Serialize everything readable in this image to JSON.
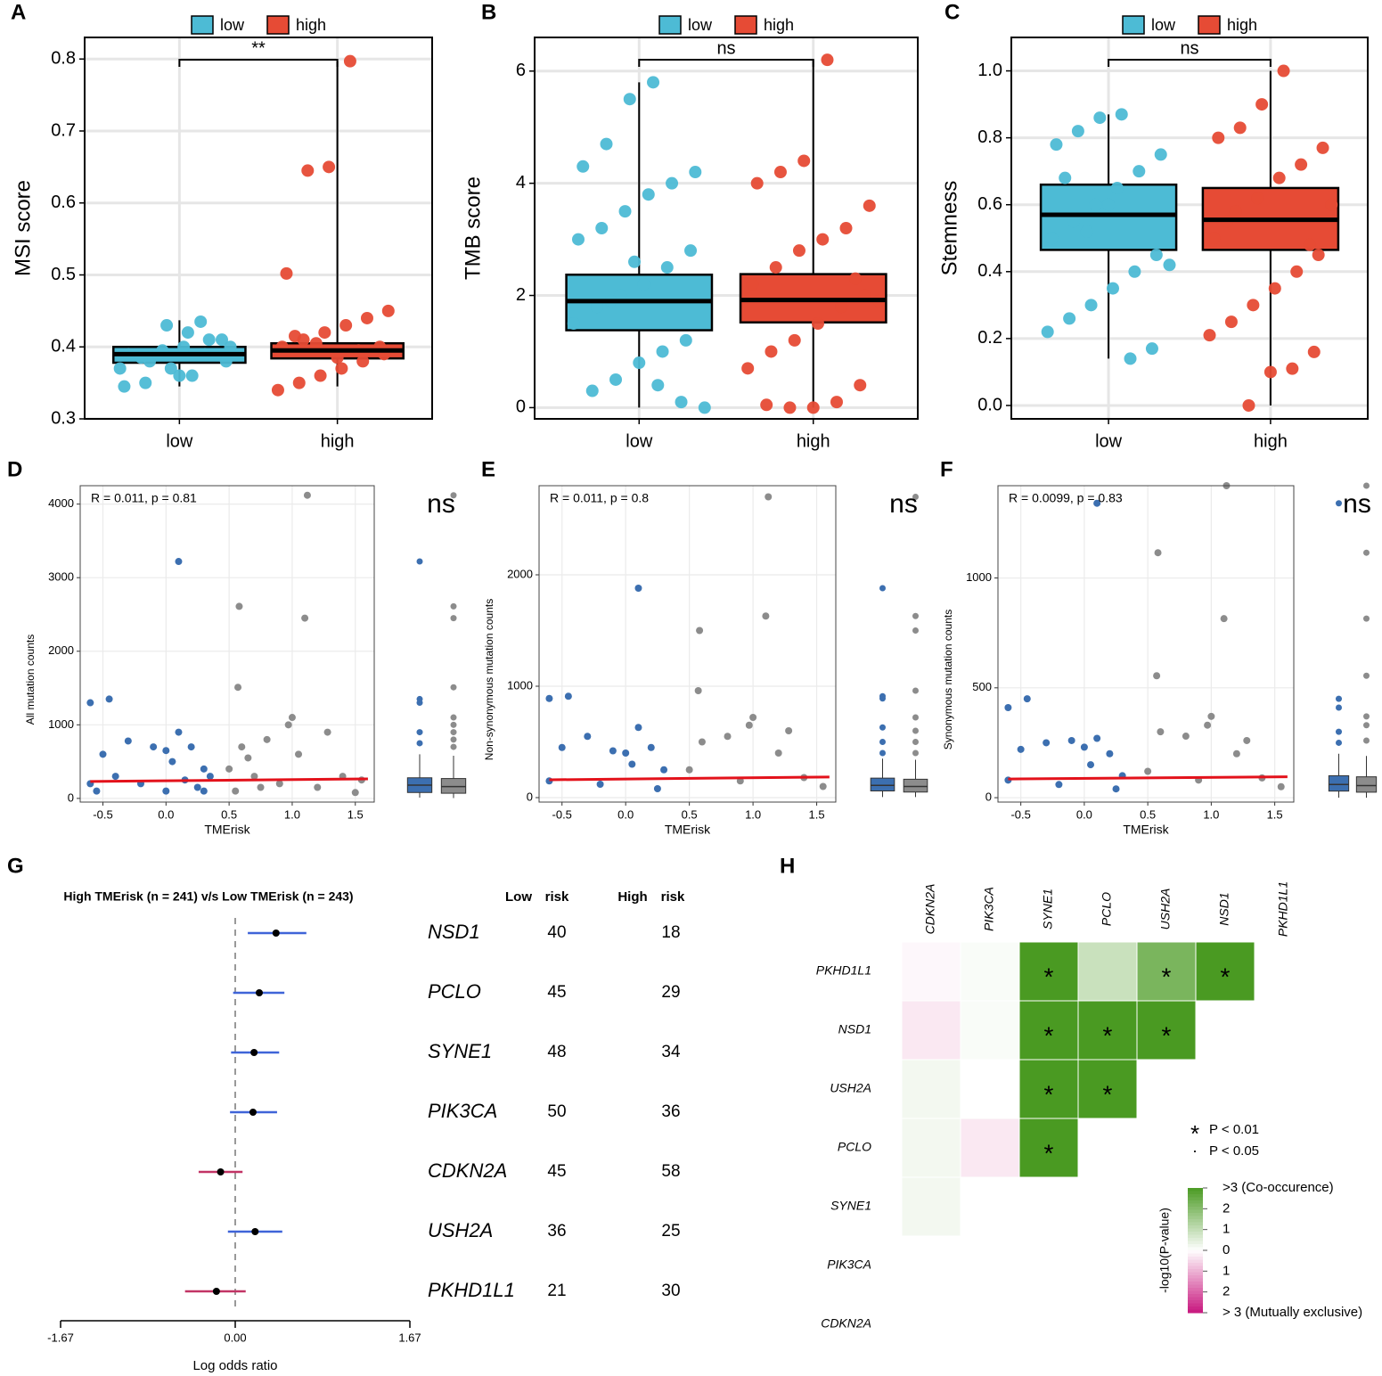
{
  "chart_data": [
    {
      "type": "box",
      "panel": "A",
      "ylabel": "MSI score",
      "categories": [
        "low",
        "high"
      ],
      "series": [
        {
          "name": "low",
          "color": "#4dbbd5"
        },
        {
          "name": "high",
          "color": "#e64b35"
        }
      ],
      "boxes": [
        {
          "q1": 0.378,
          "median": 0.39,
          "q3": 0.4,
          "whislo": 0.345,
          "whishi": 0.437,
          "points": [
            0.36,
            0.37,
            0.38,
            0.39,
            0.4,
            0.41,
            0.42,
            0.43,
            0.35,
            0.345,
            0.38,
            0.39,
            0.4,
            0.395,
            0.385,
            0.37,
            0.41,
            0.435,
            0.36,
            0.39
          ]
        },
        {
          "q1": 0.384,
          "median": 0.395,
          "q3": 0.405,
          "whislo": 0.345,
          "whishi": 0.797,
          "points": [
            0.797,
            0.65,
            0.645,
            0.502,
            0.45,
            0.44,
            0.43,
            0.42,
            0.41,
            0.4,
            0.39,
            0.38,
            0.37,
            0.36,
            0.35,
            0.34,
            0.4,
            0.395,
            0.385,
            0.405,
            0.415
          ]
        }
      ],
      "signif": "**",
      "ylim": [
        0.3,
        0.83
      ],
      "yticks": [
        0.3,
        0.4,
        0.5,
        0.6,
        0.7,
        0.8
      ],
      "grid": true
    },
    {
      "type": "box",
      "panel": "B",
      "ylabel": "TMB score",
      "categories": [
        "low",
        "high"
      ],
      "series": [
        {
          "name": "low",
          "color": "#4dbbd5"
        },
        {
          "name": "high",
          "color": "#e64b35"
        }
      ],
      "boxes": [
        {
          "q1": 1.38,
          "median": 1.9,
          "q3": 2.37,
          "whislo": 0.0,
          "whishi": 5.8,
          "points": [
            5.8,
            5.5,
            4.7,
            4.3,
            4.2,
            4.0,
            3.8,
            3.5,
            3.2,
            3.0,
            2.8,
            2.5,
            2.2,
            2.0,
            1.8,
            1.5,
            1.2,
            1.0,
            0.8,
            0.5,
            0.3,
            0.0,
            0.1,
            0.4,
            2.6,
            1.9
          ]
        },
        {
          "q1": 1.52,
          "median": 1.92,
          "q3": 2.38,
          "whislo": 0.0,
          "whishi": 6.2,
          "points": [
            6.2,
            4.4,
            4.2,
            4.0,
            3.6,
            3.2,
            3.0,
            2.8,
            2.5,
            2.2,
            2.0,
            1.8,
            1.5,
            1.2,
            1.0,
            0.7,
            0.4,
            0.1,
            0.0,
            0.0,
            0.05,
            1.9,
            2.3
          ]
        }
      ],
      "signif": "ns",
      "ylim": [
        -0.2,
        6.6
      ],
      "yticks": [
        0,
        2,
        4,
        6
      ],
      "grid": true
    },
    {
      "type": "box",
      "panel": "C",
      "ylabel": "Stemness",
      "categories": [
        "low",
        "high"
      ],
      "series": [
        {
          "name": "low",
          "color": "#4dbbd5"
        },
        {
          "name": "high",
          "color": "#e64b35"
        }
      ],
      "boxes": [
        {
          "q1": 0.465,
          "median": 0.57,
          "q3": 0.66,
          "whislo": 0.14,
          "whishi": 0.87,
          "points": [
            0.87,
            0.86,
            0.82,
            0.78,
            0.75,
            0.7,
            0.65,
            0.6,
            0.55,
            0.5,
            0.45,
            0.4,
            0.35,
            0.3,
            0.26,
            0.22,
            0.17,
            0.14,
            0.6,
            0.52,
            0.68,
            0.42
          ]
        },
        {
          "q1": 0.465,
          "median": 0.555,
          "q3": 0.65,
          "whislo": 0.0,
          "whishi": 1.0,
          "points": [
            1.0,
            0.9,
            0.83,
            0.8,
            0.77,
            0.72,
            0.68,
            0.62,
            0.58,
            0.5,
            0.45,
            0.4,
            0.35,
            0.3,
            0.25,
            0.21,
            0.16,
            0.11,
            0.1,
            0.0,
            0.55,
            0.6,
            0.48
          ]
        }
      ],
      "signif": "ns",
      "ylim": [
        -0.04,
        1.1
      ],
      "yticks": [
        {
          "value": 0,
          "label": "0.0"
        },
        0.2,
        0.4,
        0.6,
        0.8,
        {
          "value": 1,
          "label": "1.0"
        }
      ],
      "grid": true
    },
    {
      "type": "scatter",
      "panel": "D",
      "annotation": "R = 0.011, p = 0.81",
      "signif": "ns",
      "xlabel": "TMErisk",
      "ylabel": "All mutation counts",
      "groups": [
        {
          "color": "#3c6fb0",
          "x": [
            -0.6,
            -0.45,
            0.1,
            -0.6,
            -0.5,
            -0.3,
            -0.1,
            0,
            0.1,
            0.2,
            0.3,
            -0.2,
            0,
            0.15,
            0.25,
            -0.4,
            0.05,
            -0.55,
            0.3,
            0.35
          ],
          "y": [
            1300,
            1350,
            3220,
            200,
            600,
            780,
            700,
            650,
            900,
            700,
            400,
            200,
            100,
            250,
            150,
            300,
            500,
            100,
            100,
            300
          ]
        },
        {
          "color": "#8c8c8c",
          "x": [
            1.12,
            0.58,
            1.1,
            0.57,
            1.0,
            0.97,
            1.28,
            0.6,
            0.8,
            0.5,
            0.7,
            0.9,
            1.05,
            1.2,
            1.4,
            1.55,
            0.55,
            0.75,
            1.5,
            0.65
          ],
          "y": [
            4120,
            2610,
            2450,
            1510,
            1100,
            1000,
            900,
            700,
            800,
            400,
            300,
            200,
            600,
            150,
            300,
            250,
            100,
            150,
            80,
            550
          ]
        }
      ],
      "fit": {
        "color": "#e3121b",
        "x": [
          -0.6,
          1.6
        ],
        "y": [
          230,
          265
        ]
      },
      "boxes": [
        {
          "q1": 80,
          "median": 180,
          "q3": 280,
          "whislo": 10,
          "whishi": 600,
          "outliers": [
            750,
            900,
            1300,
            1350,
            3220
          ]
        },
        {
          "q1": 70,
          "median": 160,
          "q3": 270,
          "whislo": 5,
          "whishi": 580,
          "outliers": [
            700,
            800,
            900,
            1000,
            1100,
            1510,
            2450,
            2610,
            4120
          ]
        }
      ],
      "xlim": [
        -0.68,
        1.65
      ],
      "xticks": [
        -0.5,
        {
          "value": 0,
          "label": "0.0"
        },
        0.5,
        {
          "value": 1,
          "label": "1.0"
        },
        1.5
      ],
      "ylim": [
        -50,
        4250
      ],
      "yticks": [
        0,
        1000,
        2000,
        3000,
        4000
      ],
      "grid": true
    },
    {
      "type": "scatter",
      "panel": "E",
      "annotation": "R = 0.011, p = 0.8",
      "signif": "ns",
      "xlabel": "TMErisk",
      "ylabel": "Non-synonymous mutation counts",
      "groups": [
        {
          "color": "#3c6fb0",
          "x": [
            -0.6,
            -0.45,
            0.1,
            -0.6,
            -0.5,
            -0.3,
            -0.1,
            0,
            0.1,
            0.2,
            0.3,
            -0.2,
            0.05,
            0.25
          ],
          "y": [
            890,
            910,
            1880,
            150,
            450,
            550,
            420,
            400,
            630,
            450,
            250,
            120,
            300,
            80
          ]
        },
        {
          "color": "#8c8c8c",
          "x": [
            1.12,
            0.58,
            1.1,
            0.57,
            1.0,
            0.97,
            1.28,
            0.6,
            0.8,
            0.5,
            0.9,
            1.2,
            1.4,
            1.55
          ],
          "y": [
            2700,
            1500,
            1630,
            960,
            720,
            650,
            600,
            500,
            550,
            250,
            150,
            400,
            180,
            100
          ]
        }
      ],
      "fit": {
        "color": "#e3121b",
        "x": [
          -0.6,
          1.6
        ],
        "y": [
          160,
          185
        ]
      },
      "boxes": [
        {
          "q1": 60,
          "median": 110,
          "q3": 175,
          "whislo": 5,
          "whishi": 350,
          "outliers": [
            400,
            500,
            630,
            890,
            910,
            1880
          ]
        },
        {
          "q1": 50,
          "median": 100,
          "q3": 165,
          "whislo": 5,
          "whishi": 340,
          "outliers": [
            400,
            500,
            600,
            720,
            960,
            1500,
            1630,
            2700
          ]
        }
      ],
      "xlim": [
        -0.68,
        1.65
      ],
      "xticks": [
        -0.5,
        {
          "value": 0,
          "label": "0.0"
        },
        0.5,
        {
          "value": 1,
          "label": "1.0"
        },
        1.5
      ],
      "ylim": [
        -40,
        2800
      ],
      "yticks": [
        0,
        1000,
        2000
      ],
      "grid": true
    },
    {
      "type": "scatter",
      "panel": "F",
      "annotation": "R = 0.0099, p = 0.83",
      "signif": "ns",
      "xlabel": "TMErisk",
      "ylabel": "Synonymous mutation counts",
      "groups": [
        {
          "color": "#3c6fb0",
          "x": [
            -0.6,
            -0.45,
            0.1,
            -0.6,
            -0.5,
            -0.3,
            -0.1,
            0,
            0.1,
            0.2,
            0.3,
            -0.2,
            0.05,
            0.25
          ],
          "y": [
            410,
            450,
            1340,
            80,
            220,
            250,
            260,
            230,
            270,
            200,
            100,
            60,
            150,
            40
          ]
        },
        {
          "color": "#8c8c8c",
          "x": [
            1.12,
            0.58,
            1.1,
            0.57,
            1.0,
            0.97,
            1.28,
            0.6,
            0.8,
            0.5,
            0.9,
            1.2,
            1.4,
            1.55
          ],
          "y": [
            1420,
            1115,
            815,
            555,
            370,
            330,
            260,
            300,
            280,
            120,
            80,
            200,
            90,
            50
          ]
        }
      ],
      "fit": {
        "color": "#e3121b",
        "x": [
          -0.6,
          1.6
        ],
        "y": [
          85,
          95
        ]
      },
      "boxes": [
        {
          "q1": 30,
          "median": 60,
          "q3": 100,
          "whislo": 0,
          "whishi": 200,
          "outliers": [
            250,
            300,
            410,
            450,
            1340
          ]
        },
        {
          "q1": 25,
          "median": 55,
          "q3": 95,
          "whislo": 0,
          "whishi": 190,
          "outliers": [
            260,
            330,
            370,
            555,
            815,
            1115,
            1420
          ]
        }
      ],
      "xlim": [
        -0.68,
        1.65
      ],
      "xticks": [
        -0.5,
        {
          "value": 0,
          "label": "0.0"
        },
        0.5,
        {
          "value": 1,
          "label": "1.0"
        },
        1.5
      ],
      "ylim": [
        -20,
        1420
      ],
      "yticks": [
        0,
        500,
        1000
      ],
      "grid": true
    },
    {
      "type": "forest",
      "panel": "G",
      "title": "High TMErisk (n = 241) v/s Low TMErisk (n = 243)",
      "xlabel": "Log odds ratio",
      "col_headers": [
        "Low",
        "risk",
        "High",
        "risk"
      ],
      "genes": [
        "NSD1",
        "PCLO",
        "SYNE1",
        "PIK3CA",
        "CDKN2A",
        "USH2A",
        "PKHD1L1"
      ],
      "estimate": [
        0.39,
        0.23,
        0.18,
        0.17,
        -0.14,
        0.19,
        -0.18
      ],
      "ci_low": [
        0.12,
        -0.02,
        -0.04,
        -0.05,
        -0.35,
        -0.07,
        -0.48
      ],
      "ci_high": [
        0.68,
        0.47,
        0.42,
        0.4,
        0.07,
        0.45,
        0.1
      ],
      "low_counts": [
        40,
        45,
        48,
        50,
        45,
        36,
        21
      ],
      "high_counts": [
        18,
        29,
        34,
        36,
        58,
        25,
        30
      ],
      "color_pos": "#3f64d8",
      "color_neg": "#c23465",
      "xlim": [
        -1.67,
        1.67
      ],
      "xticks": [
        -1.67,
        {
          "value": 0,
          "label": "0.00"
        },
        1.67
      ]
    },
    {
      "type": "heatmap",
      "panel": "H",
      "rows": [
        "PKHD1L1",
        "NSD1",
        "USH2A",
        "PCLO",
        "SYNE1",
        "PIK3CA",
        "CDKN2A"
      ],
      "columns": [
        "CDKN2A",
        "PIK3CA",
        "SYNE1",
        "PCLO",
        "USH2A",
        "NSD1",
        "PKHD1L1"
      ],
      "values": [
        [
          -0.1,
          0.1,
          3,
          0.9,
          2.2,
          3,
          null
        ],
        [
          -0.3,
          0.1,
          3,
          3,
          3,
          null,
          null
        ],
        [
          0.2,
          0,
          3,
          3,
          null,
          null,
          null
        ],
        [
          0.2,
          -0.3,
          3,
          null,
          null,
          null,
          null
        ],
        [
          0.2,
          0,
          null,
          null,
          null,
          null,
          null
        ],
        [
          0,
          null,
          null,
          null,
          null,
          null,
          null
        ],
        [
          null,
          null,
          null,
          null,
          null,
          null,
          null
        ]
      ],
      "cell_labels": [
        [
          null,
          null,
          "*",
          null,
          "*",
          "*",
          null
        ],
        [
          null,
          null,
          "*",
          "*",
          "*",
          null,
          null
        ],
        [
          null,
          null,
          "*",
          "*",
          null,
          null,
          null
        ],
        [
          null,
          null,
          "*",
          null,
          null,
          null,
          null
        ],
        [
          null,
          null,
          null,
          null,
          null,
          null,
          null
        ],
        [
          null,
          null,
          null,
          null,
          null,
          null,
          null
        ],
        [
          null,
          null,
          null,
          null,
          null,
          null,
          null
        ]
      ],
      "sig_legend": [
        {
          "symbol": "*",
          "label": "P < 0.01"
        },
        {
          "symbol": "·",
          "label": "P < 0.05"
        }
      ],
      "colorbar_label": "-log10(P-value)",
      "zlim": [
        -3,
        3
      ],
      "color_pos": "#4a9a22",
      "color_neg": "#c8177e",
      "colorbar_ticks": [
        {
          "value": 3,
          "label": ">3 (Co-occurence)"
        },
        2,
        1,
        0,
        {
          "value": -1,
          "label": "1"
        },
        {
          "value": -2,
          "label": "2"
        },
        {
          "value": -3,
          "label": "> 3 (Mutually exclusive)"
        }
      ]
    }
  ]
}
